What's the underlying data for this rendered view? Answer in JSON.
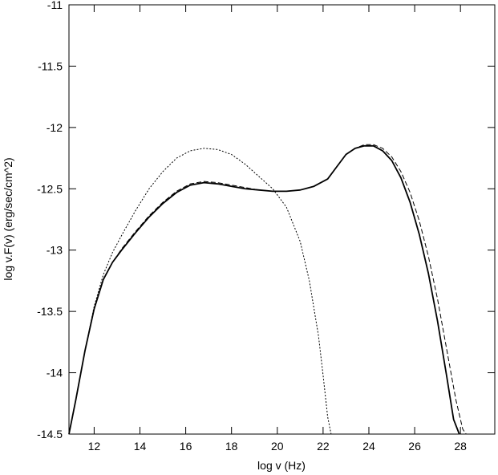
{
  "chart_data": {
    "type": "line",
    "title": "",
    "xlabel": "log v (Hz)",
    "ylabel": "log v.F(v) (erg/sec/cm^2)",
    "xlim": [
      10.9,
      29.5
    ],
    "ylim": [
      -14.5,
      -11
    ],
    "x_ticks": [
      {
        "value": 12,
        "label": "12"
      },
      {
        "value": 14,
        "label": "14"
      },
      {
        "value": 16,
        "label": "16"
      },
      {
        "value": 18,
        "label": "18"
      },
      {
        "value": 20,
        "label": "20"
      },
      {
        "value": 22,
        "label": "22"
      },
      {
        "value": 24,
        "label": "24"
      },
      {
        "value": 26,
        "label": "26"
      },
      {
        "value": 28,
        "label": "28"
      }
    ],
    "y_ticks": [
      {
        "value": -11,
        "label": "-11"
      },
      {
        "value": -11.5,
        "label": "-11.5"
      },
      {
        "value": -12,
        "label": "-12"
      },
      {
        "value": -12.5,
        "label": "-12.5"
      },
      {
        "value": -13,
        "label": "-13"
      },
      {
        "value": -13.5,
        "label": "-13.5"
      },
      {
        "value": -14,
        "label": "-14"
      },
      {
        "value": -14.5,
        "label": "-14.5"
      }
    ],
    "grid": false,
    "legend": "none",
    "series": [
      {
        "style": "solid",
        "color": "#000000",
        "x": [
          10.9,
          11.2,
          11.6,
          12.0,
          12.4,
          12.8,
          13.2,
          13.8,
          14.4,
          15.0,
          15.6,
          16.2,
          16.8,
          17.4,
          18.0,
          18.6,
          19.2,
          19.8,
          20.4,
          21.0,
          21.6,
          22.2,
          22.6,
          23.0,
          23.4,
          23.8,
          24.2,
          24.6,
          25.0,
          25.4,
          25.8,
          26.2,
          26.6,
          27.0,
          27.4,
          27.7,
          27.95
        ],
        "y": [
          -14.5,
          -14.22,
          -13.82,
          -13.48,
          -13.24,
          -13.1,
          -13.0,
          -12.86,
          -12.73,
          -12.62,
          -12.53,
          -12.47,
          -12.45,
          -12.46,
          -12.48,
          -12.5,
          -12.51,
          -12.52,
          -12.52,
          -12.51,
          -12.48,
          -12.42,
          -12.32,
          -12.22,
          -12.17,
          -12.15,
          -12.15,
          -12.19,
          -12.27,
          -12.41,
          -12.61,
          -12.87,
          -13.19,
          -13.58,
          -14.03,
          -14.38,
          -14.5
        ]
      },
      {
        "style": "dashed",
        "color": "#000000",
        "x": [
          10.9,
          11.2,
          11.6,
          12.0,
          12.4,
          12.8,
          13.2,
          13.8,
          14.4,
          15.0,
          15.6,
          16.2,
          16.8,
          17.4,
          18.0,
          18.6,
          19.2,
          19.8,
          20.4,
          21.0,
          21.6,
          22.2,
          22.6,
          23.0,
          23.4,
          23.8,
          24.2,
          24.6,
          25.0,
          25.4,
          25.8,
          26.2,
          26.6,
          27.0,
          27.4,
          27.8,
          28.1,
          28.25
        ],
        "y": [
          -14.5,
          -14.22,
          -13.82,
          -13.48,
          -13.24,
          -13.1,
          -12.99,
          -12.85,
          -12.72,
          -12.61,
          -12.52,
          -12.46,
          -12.44,
          -12.45,
          -12.47,
          -12.49,
          -12.51,
          -12.52,
          -12.52,
          -12.51,
          -12.48,
          -12.42,
          -12.32,
          -12.22,
          -12.17,
          -12.14,
          -12.14,
          -12.17,
          -12.24,
          -12.36,
          -12.53,
          -12.76,
          -13.05,
          -13.4,
          -13.81,
          -14.22,
          -14.46,
          -14.5
        ]
      },
      {
        "style": "dotted",
        "color": "#000000",
        "x": [
          10.9,
          11.2,
          11.6,
          12.0,
          12.4,
          12.8,
          13.2,
          13.8,
          14.4,
          15.0,
          15.6,
          16.2,
          16.8,
          17.4,
          18.0,
          18.6,
          19.2,
          19.8,
          20.4,
          21.0,
          21.4,
          21.8,
          22.0,
          22.2,
          22.35
        ],
        "y": [
          -14.5,
          -14.22,
          -13.82,
          -13.46,
          -13.2,
          -13.02,
          -12.88,
          -12.68,
          -12.5,
          -12.36,
          -12.25,
          -12.19,
          -12.17,
          -12.18,
          -12.22,
          -12.3,
          -12.4,
          -12.5,
          -12.65,
          -12.93,
          -13.25,
          -13.7,
          -14.02,
          -14.36,
          -14.5
        ]
      }
    ]
  }
}
